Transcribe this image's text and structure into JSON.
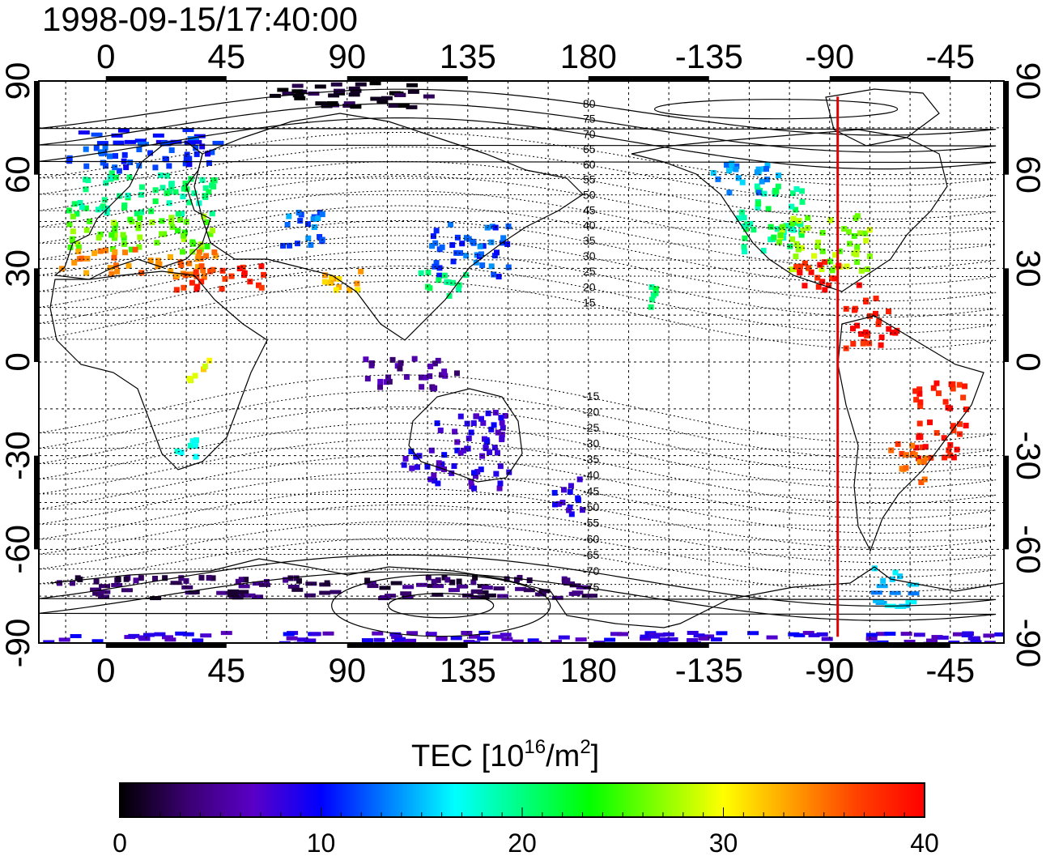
{
  "title": "1998-09-15/17:40:00",
  "map": {
    "lon_start": -25,
    "lon_span": 360,
    "lat_range": [
      -90,
      90
    ],
    "top_ticks": [
      "0",
      "45",
      "90",
      "135",
      "180",
      "-135",
      "-90",
      "-45"
    ],
    "bottom_ticks": [
      "0",
      "45",
      "90",
      "135",
      "180",
      "-135",
      "-90",
      "-45"
    ],
    "left_ticks": [
      "90",
      "60",
      "30",
      "0",
      "-30",
      "-60",
      "-90"
    ],
    "right_ticks": [
      "90",
      "60",
      "30",
      "0",
      "-30",
      "-60",
      "-90"
    ],
    "tick_lon_values": [
      0,
      45,
      90,
      135,
      180,
      225,
      270,
      315
    ],
    "tick_lat_values": [
      90,
      60,
      30,
      0,
      -30,
      -60,
      -90
    ],
    "grid": true,
    "meridian_marker": {
      "lon": -87,
      "color": "#e00000"
    }
  },
  "contours": {
    "north_labels": [
      "80",
      "75",
      "70",
      "65",
      "60",
      "55",
      "50",
      "45",
      "40",
      "35",
      "30",
      "25",
      "20",
      "15"
    ],
    "north_values": [
      80,
      75,
      70,
      65,
      60,
      55,
      50,
      45,
      40,
      35,
      30,
      25,
      20,
      15
    ],
    "south_labels": [
      "-15",
      "-20",
      "-25",
      "-30",
      "-35",
      "-40",
      "-45",
      "-50",
      "-55",
      "-60",
      "-65",
      "-70",
      "-75"
    ],
    "south_values": [
      -15,
      -20,
      -25,
      -30,
      -35,
      -40,
      -45,
      -50,
      -55,
      -60,
      -65,
      -70,
      -75
    ]
  },
  "colorbar": {
    "title_main": "TEC  [10",
    "title_sup1": "16",
    "title_mid": "/m",
    "title_sup2": "2",
    "title_end": "]",
    "labels": [
      "0",
      "10",
      "20",
      "30",
      "40"
    ],
    "min": 0,
    "max": 40,
    "stops": [
      "#000000",
      "#3a0070",
      "#5a00c8",
      "#0000ff",
      "#0080ff",
      "#00ffff",
      "#00ff80",
      "#00ff00",
      "#80ff00",
      "#ffff00",
      "#ffa000",
      "#ff4000",
      "#ff0000"
    ]
  },
  "tec_regions": [
    {
      "region": "europe-north",
      "lon": [
        -15,
        40
      ],
      "lat": [
        62,
        75
      ],
      "tec": 11
    },
    {
      "region": "europe-central",
      "lon": [
        -15,
        40
      ],
      "lat": [
        48,
        62
      ],
      "tec": 20
    },
    {
      "region": "europe-south",
      "lon": [
        -15,
        40
      ],
      "lat": [
        36,
        48
      ],
      "tec": 26
    },
    {
      "region": "mediterranean",
      "lon": [
        -18,
        40
      ],
      "lat": [
        28,
        37
      ],
      "tec": 34
    },
    {
      "region": "middle-east",
      "lon": [
        25,
        60
      ],
      "lat": [
        24,
        33
      ],
      "tec": 38
    },
    {
      "region": "central-asia",
      "lon": [
        65,
        85
      ],
      "lat": [
        38,
        50
      ],
      "tec": 13
    },
    {
      "region": "india",
      "lon": [
        80,
        95
      ],
      "lat": [
        22,
        32
      ],
      "tec": 32
    },
    {
      "region": "japan-china",
      "lon": [
        120,
        150
      ],
      "lat": [
        28,
        45
      ],
      "tec": 12
    },
    {
      "region": "east-china",
      "lon": [
        115,
        135
      ],
      "lat": [
        22,
        30
      ],
      "tec": 20
    },
    {
      "region": "north-america-west",
      "lon": [
        -125,
        -100
      ],
      "lat": [
        35,
        58
      ],
      "tec": 20
    },
    {
      "region": "north-america-central",
      "lon": [
        -110,
        -75
      ],
      "lat": [
        30,
        48
      ],
      "tec": 27
    },
    {
      "region": "north-america-south",
      "lon": [
        -105,
        -80
      ],
      "lat": [
        24,
        33
      ],
      "tec": 39
    },
    {
      "region": "canada",
      "lon": [
        -135,
        -110
      ],
      "lat": [
        55,
        65
      ],
      "tec": 14
    },
    {
      "region": "hawaii",
      "lon": [
        -160,
        -155
      ],
      "lat": [
        18,
        25
      ],
      "tec": 20
    },
    {
      "region": "caribbean",
      "lon": [
        -85,
        -65
      ],
      "lat": [
        5,
        22
      ],
      "tec": 39
    },
    {
      "region": "brazil",
      "lon": [
        -60,
        -40
      ],
      "lat": [
        -30,
        -5
      ],
      "tec": 39
    },
    {
      "region": "argentina",
      "lon": [
        -70,
        -55
      ],
      "lat": [
        -38,
        -25
      ],
      "tec": 36
    },
    {
      "region": "patagonia",
      "lon": [
        -75,
        -60
      ],
      "lat": [
        -78,
        -65
      ],
      "tec": 15
    },
    {
      "region": "australia-west",
      "lon": [
        110,
        120
      ],
      "lat": [
        -35,
        -25
      ],
      "tec": 9
    },
    {
      "region": "australia",
      "lon": [
        120,
        150
      ],
      "lat": [
        -40,
        -15
      ],
      "tec": 8
    },
    {
      "region": "new-zealand",
      "lon": [
        165,
        178
      ],
      "lat": [
        -48,
        -35
      ],
      "tec": 9
    },
    {
      "region": "indonesia",
      "lon": [
        95,
        130
      ],
      "lat": [
        -8,
        2
      ],
      "tec": 5
    },
    {
      "region": "south-africa",
      "lon": [
        25,
        35
      ],
      "lat": [
        -32,
        -24
      ],
      "tec": 16
    },
    {
      "region": "east-africa",
      "lon": [
        30,
        40
      ],
      "lat": [
        -5,
        2
      ],
      "tec": 30
    },
    {
      "region": "antarctica-coast",
      "lon": [
        -20,
        180
      ],
      "lat": [
        -75,
        -68
      ],
      "tec": 3
    },
    {
      "region": "antarctica-south",
      "lon": [
        -25,
        335
      ],
      "lat": [
        -90,
        -86
      ],
      "tec": 8
    },
    {
      "region": "arctic-europe",
      "lon": [
        60,
        120
      ],
      "lat": [
        82,
        90
      ],
      "tec": 1
    }
  ]
}
